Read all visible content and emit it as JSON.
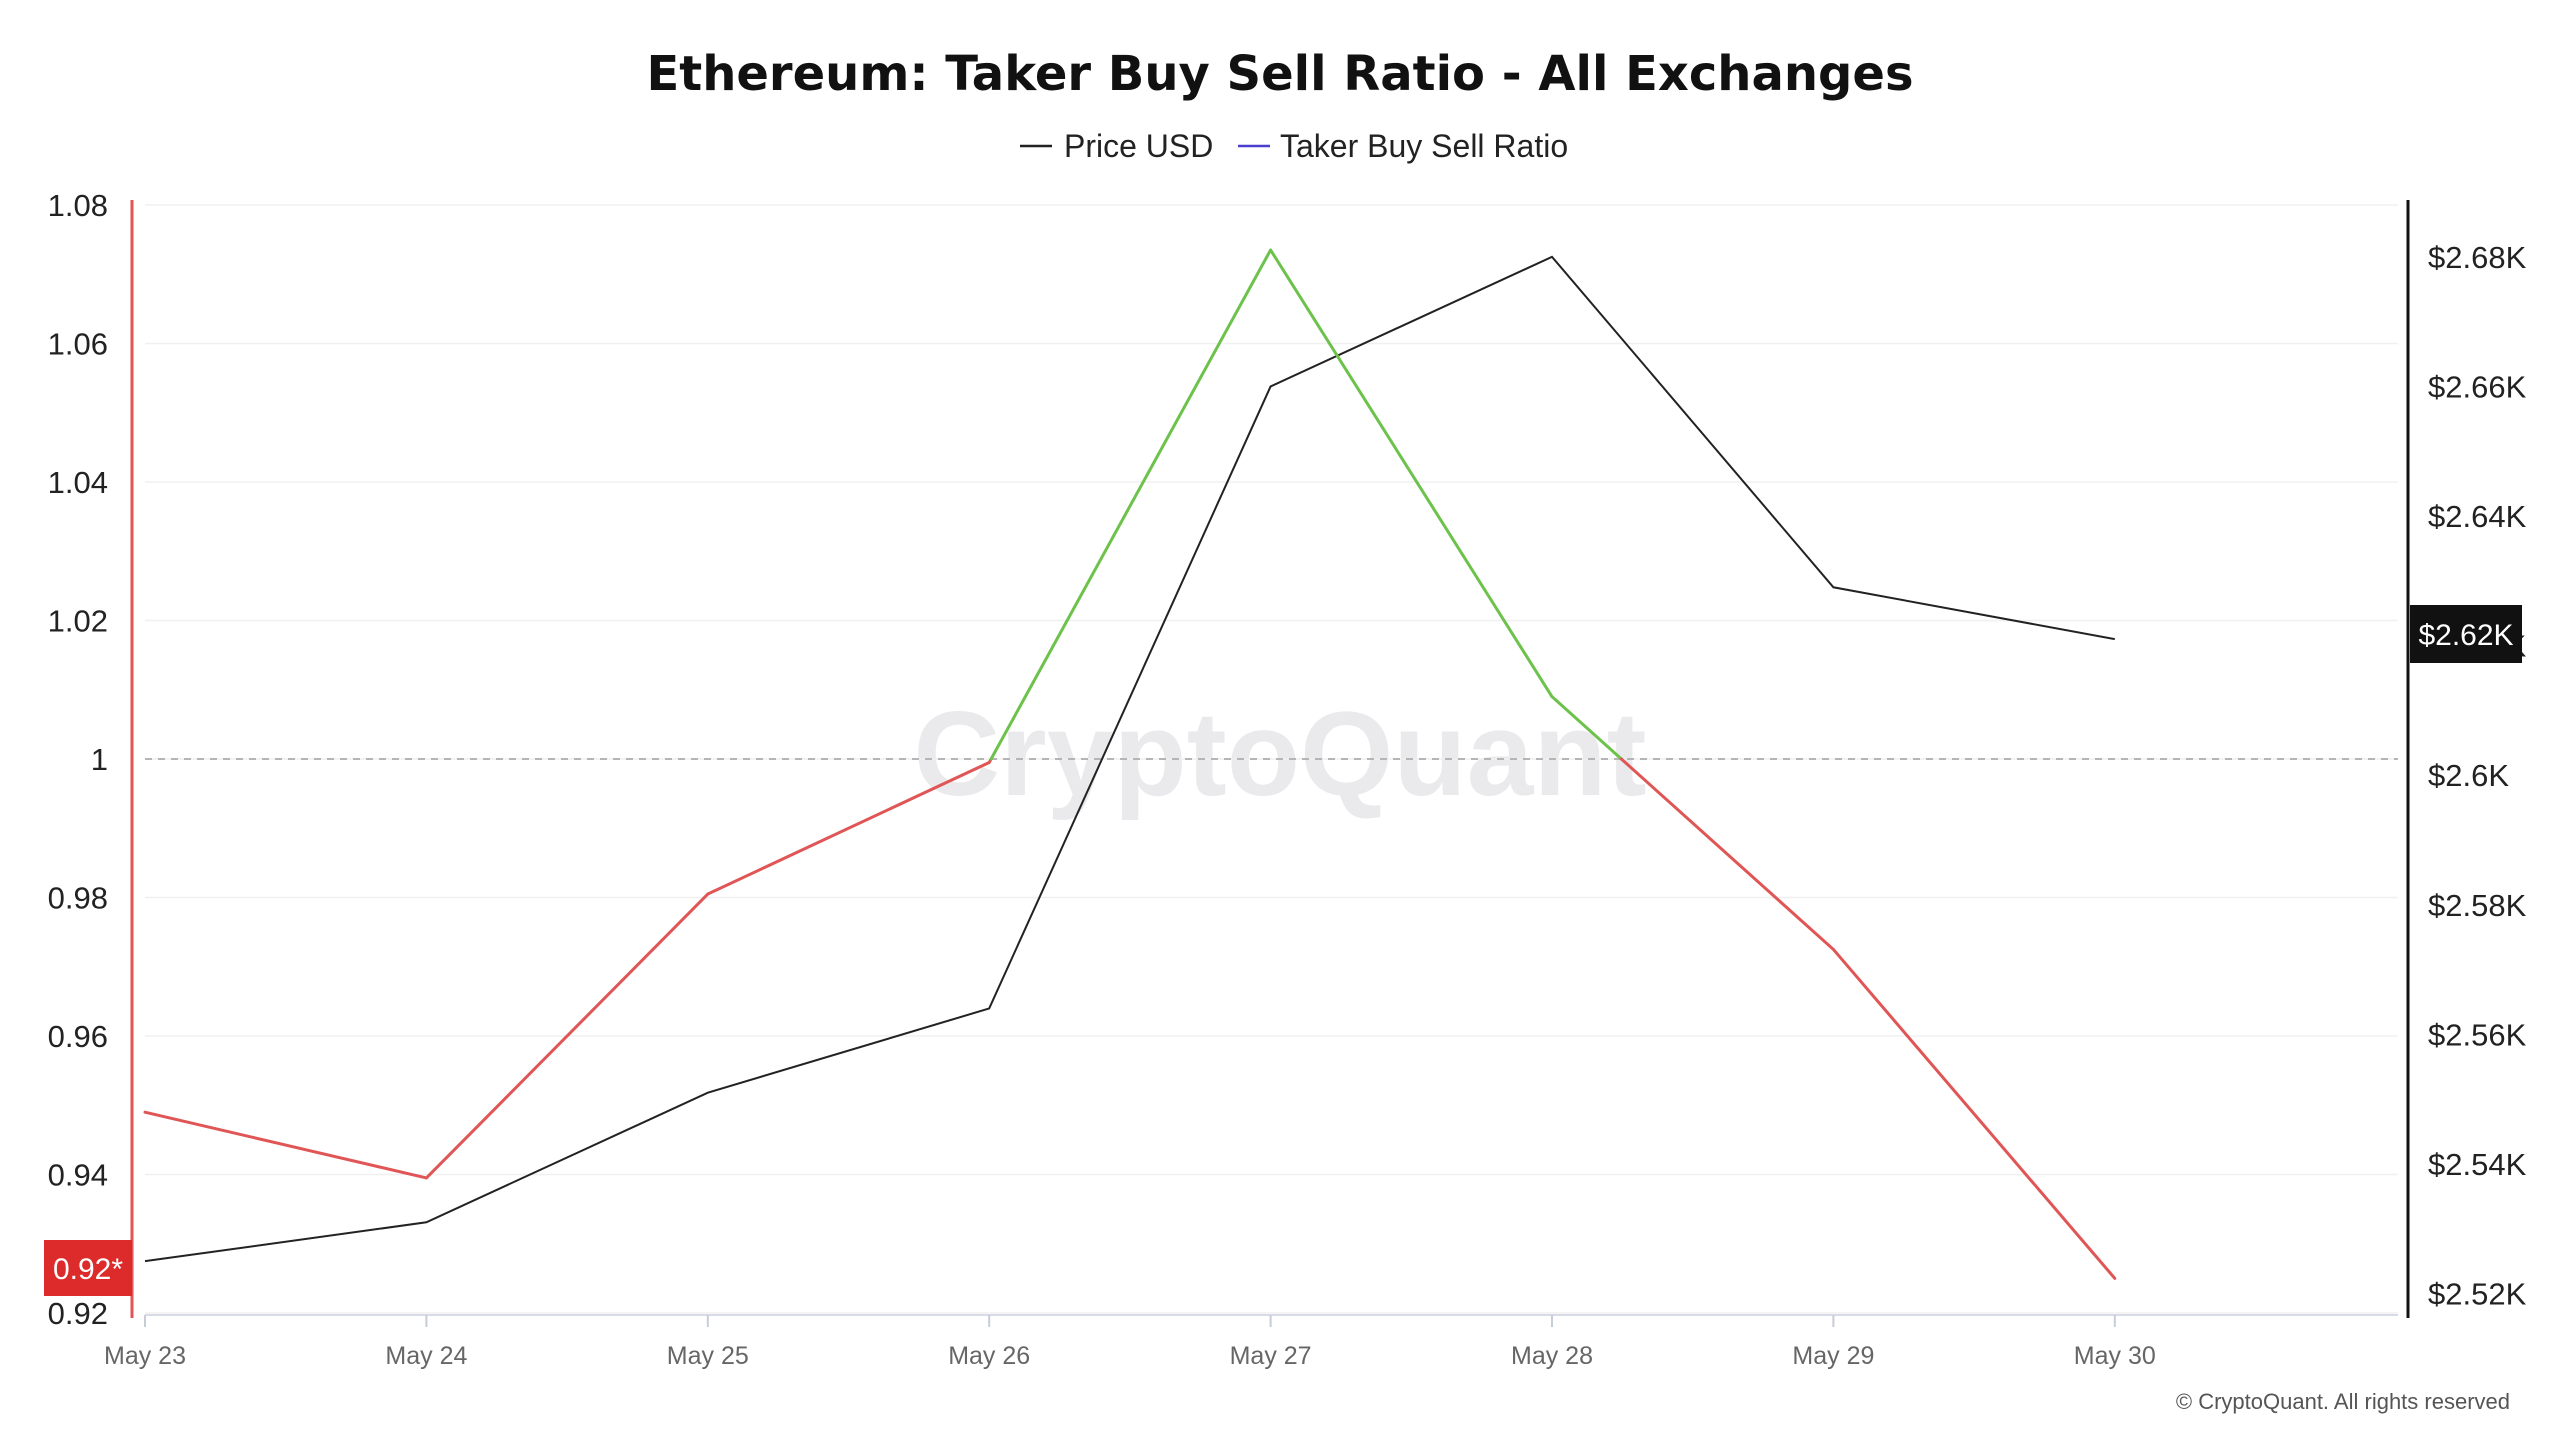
{
  "chart_data": {
    "type": "line",
    "title": "Ethereum: Taker Buy Sell Ratio - All Exchanges",
    "categories": [
      "May 23",
      "May 24",
      "May 25",
      "May 26",
      "May 27",
      "May 28",
      "May 29",
      "May 30"
    ],
    "series": [
      {
        "name": "Price USD",
        "axis": "right",
        "color": "#222222",
        "values": [
          2525,
          2531,
          2551,
          2564,
          2660,
          2680,
          2629,
          2621
        ]
      },
      {
        "name": "Taker Buy Sell Ratio",
        "axis": "left",
        "legend_color": "#4b3fcf",
        "above_color": "#6cc24a",
        "below_color": "#e05555",
        "values": [
          0.949,
          0.9395,
          0.9805,
          0.9995,
          1.0735,
          1.009,
          0.9725,
          0.925
        ]
      }
    ],
    "y_left": {
      "ticks": [
        "1.08",
        "1.06",
        "1.04",
        "1.02",
        "1",
        "0.98",
        "0.96",
        "0.94",
        "0.92"
      ],
      "tick_values": [
        1.08,
        1.06,
        1.04,
        1.02,
        1.0,
        0.98,
        0.96,
        0.94,
        0.92
      ],
      "range": [
        0.92,
        1.08
      ],
      "color": "#e05555"
    },
    "y_right": {
      "ticks": [
        "$2.68K",
        "$2.66K",
        "$2.64K",
        "$2.62K",
        "$2.6K",
        "$2.58K",
        "$2.56K",
        "$2.54K",
        "$2.52K"
      ],
      "tick_values": [
        2680,
        2660,
        2640,
        2620,
        2600,
        2580,
        2560,
        2540,
        2520
      ],
      "range": [
        2517,
        2688
      ],
      "color": "#111111"
    },
    "reference_line": 1.0,
    "current_left_badge": "0.92*",
    "current_right_badge": "$2.62K",
    "legend_position": "top-center",
    "grid": true
  },
  "watermark": "CryptoQuant",
  "copyright": "© CryptoQuant. All rights reserved"
}
